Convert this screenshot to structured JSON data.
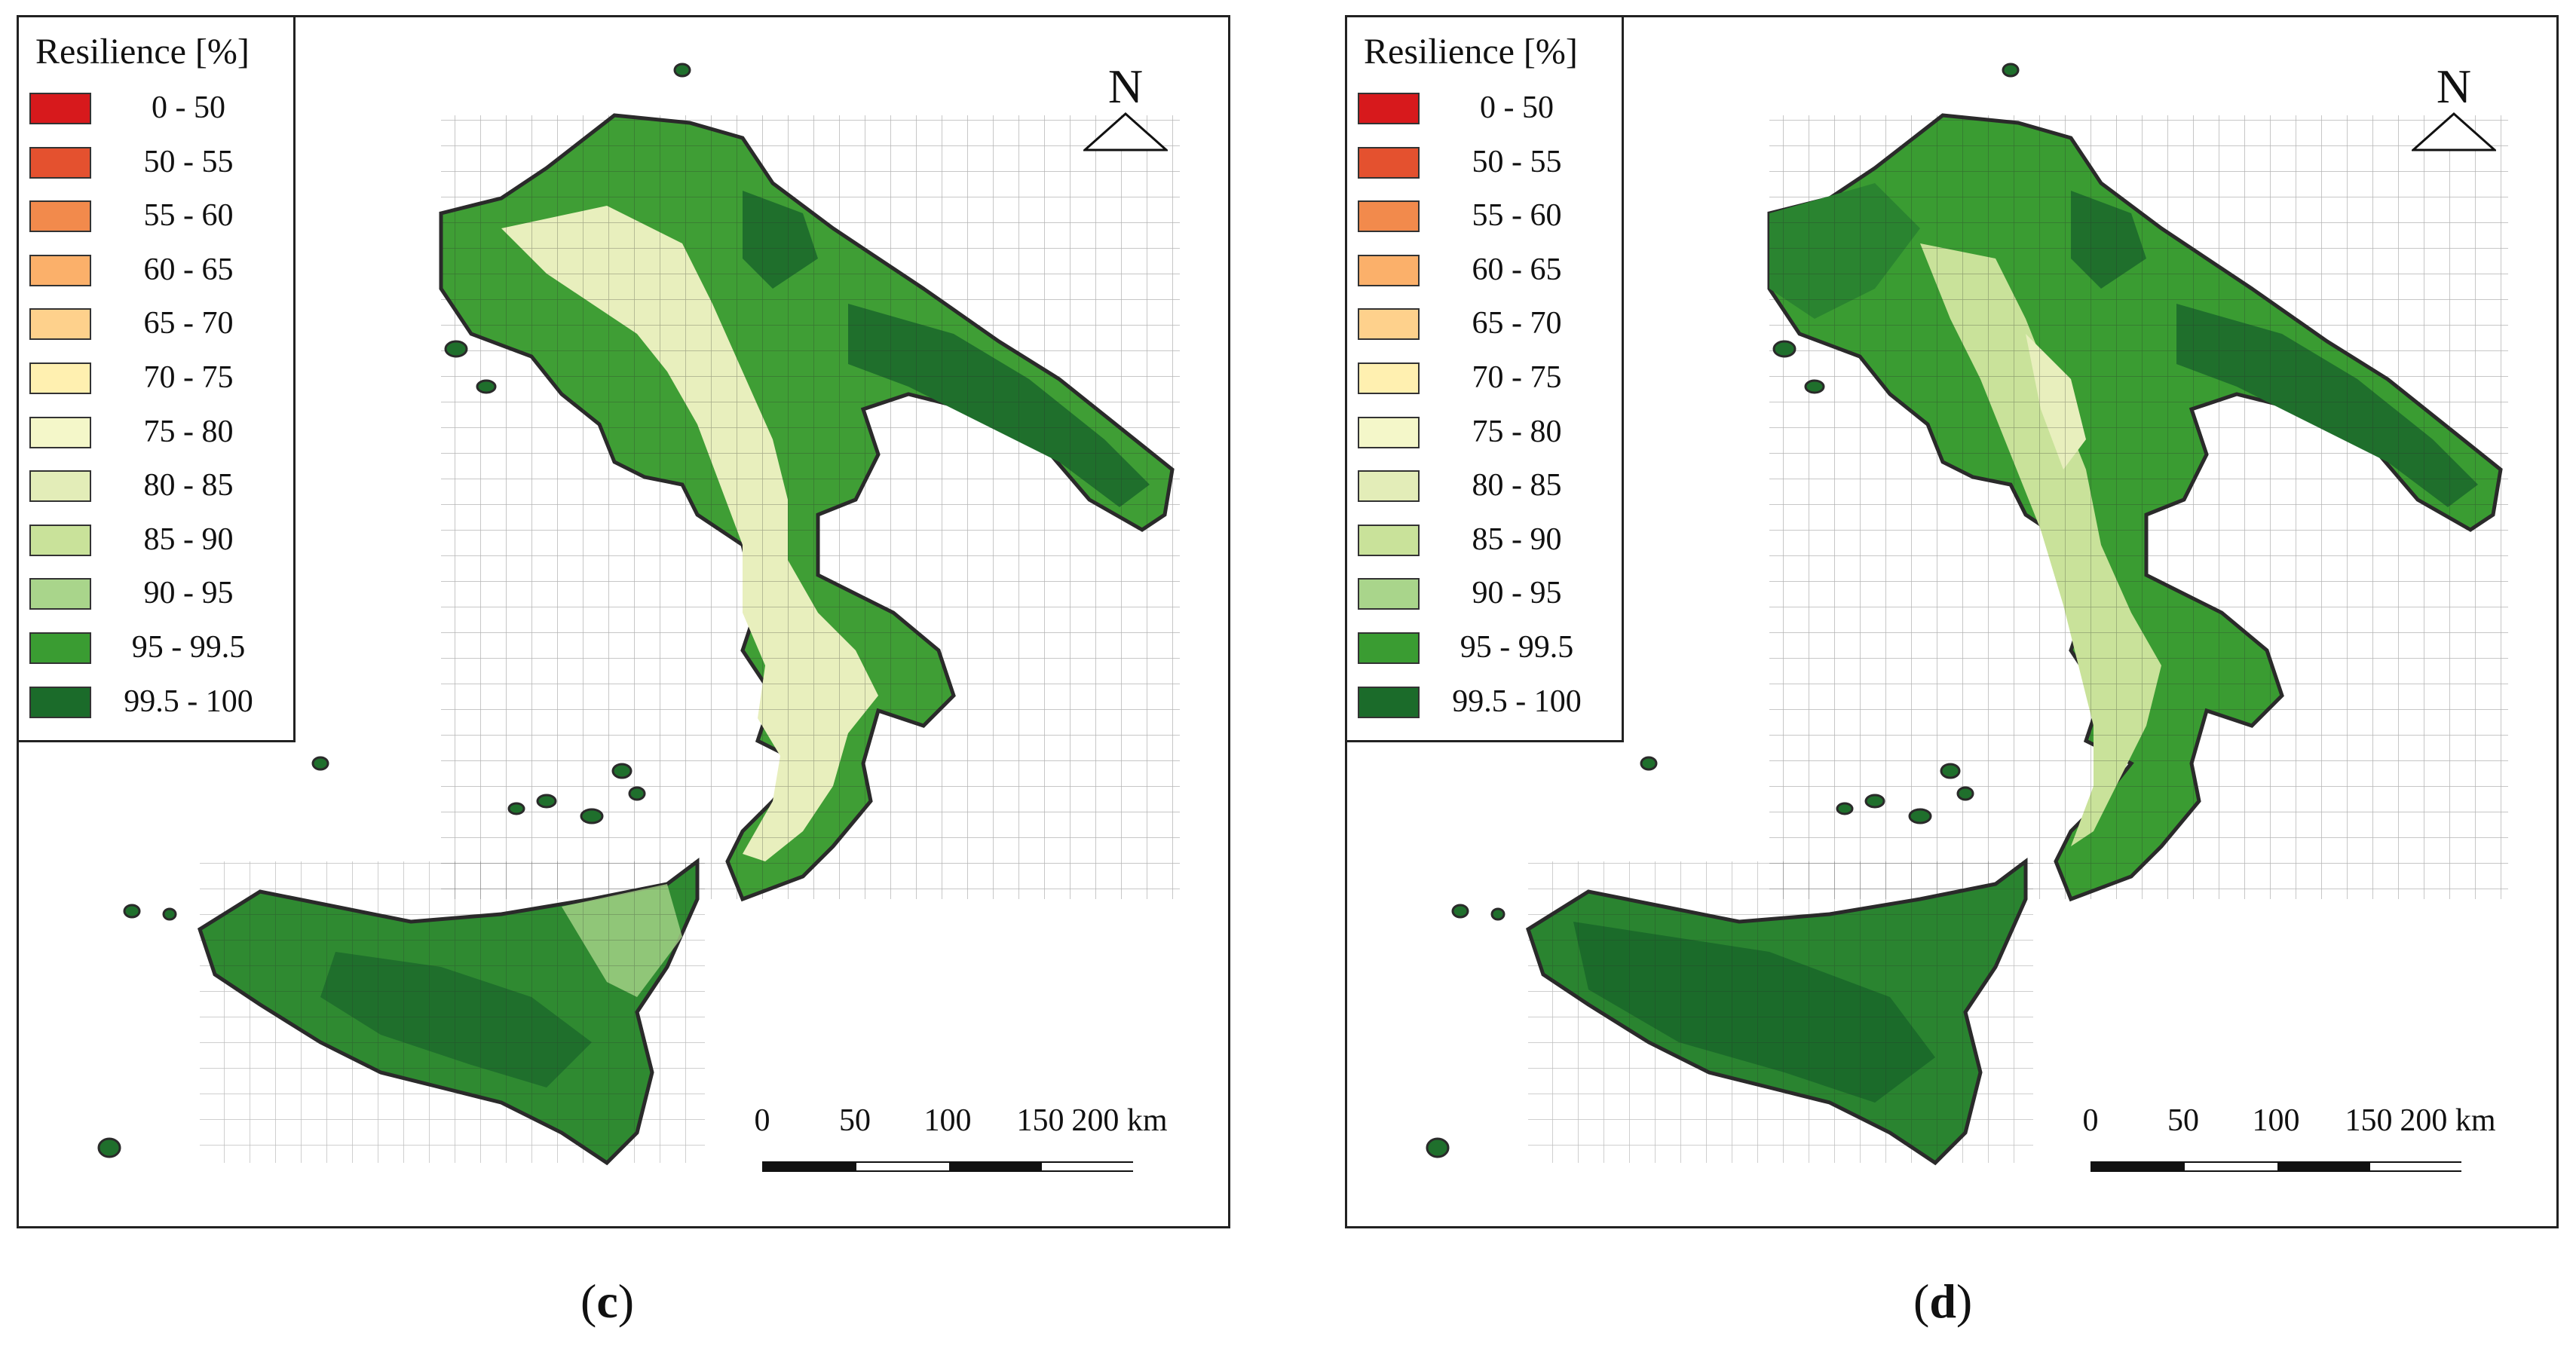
{
  "legend": {
    "title": "Resilience [%]",
    "classes": [
      {
        "range": "0 - 50",
        "color": "#d7191c"
      },
      {
        "range": "50 - 55",
        "color": "#e4512f"
      },
      {
        "range": "55 - 60",
        "color": "#f28a4c"
      },
      {
        "range": "60 - 65",
        "color": "#fbb06a"
      },
      {
        "range": "65 - 70",
        "color": "#fed18c"
      },
      {
        "range": "70 - 75",
        "color": "#fff0b0"
      },
      {
        "range": "75 - 80",
        "color": "#f4f7c9"
      },
      {
        "range": "80 - 85",
        "color": "#e3edb8"
      },
      {
        "range": "85 - 90",
        "color": "#c9e29a"
      },
      {
        "range": "90 - 95",
        "color": "#a9d58b"
      },
      {
        "range": "95 - 99.5",
        "color": "#3a9c32"
      },
      {
        "range": "99.5 - 100",
        "color": "#1b6b2a"
      }
    ]
  },
  "north_label": "N",
  "scale": {
    "ticks": [
      "0",
      "50",
      "100",
      "150",
      "200 km"
    ]
  },
  "panels": [
    {
      "caption_open": "(",
      "caption_letter": "c",
      "caption_close": ")"
    },
    {
      "caption_open": "(",
      "caption_letter": "d",
      "caption_close": ")"
    }
  ],
  "map_colors": {
    "border": "#2a2a2a",
    "light_fill": "#e8efbd",
    "mid_fill": "#3f9e35",
    "dark_fill": "#1f6f2c"
  }
}
